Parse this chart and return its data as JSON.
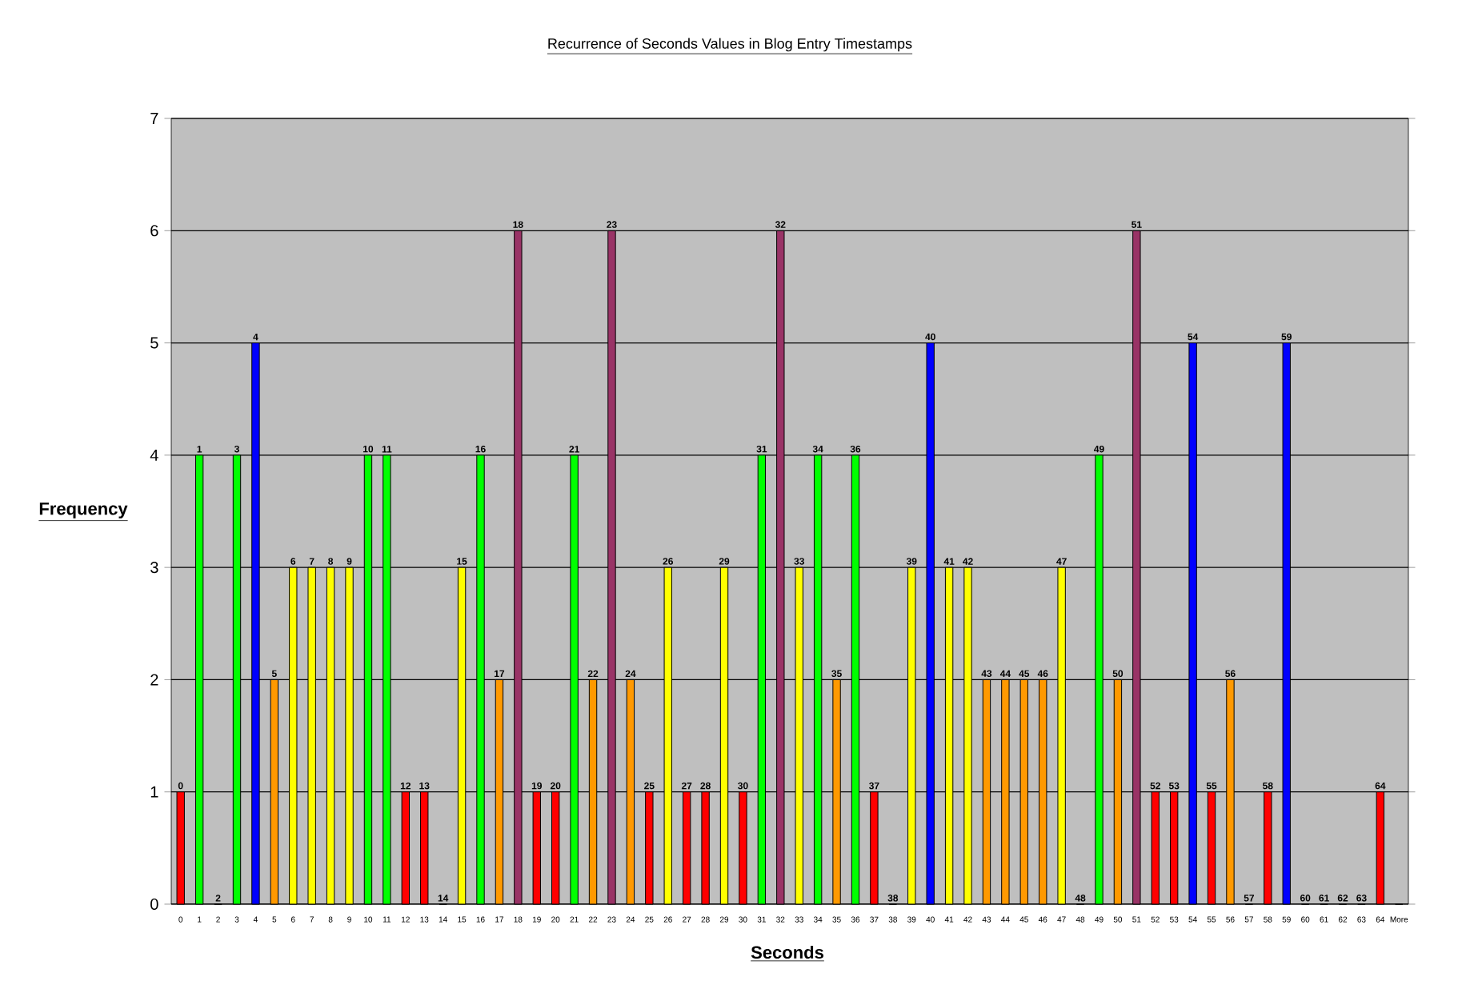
{
  "chart_data": {
    "type": "bar",
    "title": "Recurrence of Seconds Values in Blog Entry Timestamps",
    "xlabel": "Seconds",
    "ylabel": "Frequency",
    "categories": [
      "0",
      "1",
      "2",
      "3",
      "4",
      "5",
      "6",
      "7",
      "8",
      "9",
      "10",
      "11",
      "12",
      "13",
      "14",
      "15",
      "16",
      "17",
      "18",
      "19",
      "20",
      "21",
      "22",
      "23",
      "24",
      "25",
      "26",
      "27",
      "28",
      "29",
      "30",
      "31",
      "32",
      "33",
      "34",
      "35",
      "36",
      "37",
      "38",
      "39",
      "40",
      "41",
      "42",
      "43",
      "44",
      "45",
      "46",
      "47",
      "48",
      "49",
      "50",
      "51",
      "52",
      "53",
      "54",
      "55",
      "56",
      "57",
      "58",
      "59",
      "60",
      "61",
      "62",
      "63",
      "64",
      "More"
    ],
    "values": [
      1,
      4,
      0,
      4,
      5,
      2,
      3,
      3,
      3,
      3,
      4,
      4,
      1,
      1,
      0,
      3,
      4,
      2,
      6,
      1,
      1,
      4,
      2,
      6,
      2,
      1,
      3,
      1,
      1,
      3,
      1,
      4,
      6,
      3,
      4,
      2,
      4,
      1,
      0,
      3,
      5,
      3,
      3,
      2,
      2,
      2,
      2,
      3,
      0,
      4,
      2,
      6,
      1,
      1,
      5,
      1,
      2,
      0,
      1,
      5,
      0,
      0,
      0,
      0,
      1,
      0
    ],
    "annotations": [
      {
        "text": "0",
        "x": "0",
        "y": 1
      },
      {
        "text": "1",
        "x": "1",
        "y": 4
      },
      {
        "text": "2",
        "x": "2",
        "y": 0
      },
      {
        "text": "3",
        "x": "3",
        "y": 4
      },
      {
        "text": "4",
        "x": "4",
        "y": 5
      },
      {
        "text": "5",
        "x": "5",
        "y": 2
      },
      {
        "text": "6",
        "x": "6",
        "y": 3
      },
      {
        "text": "7",
        "x": "7",
        "y": 3
      },
      {
        "text": "8",
        "x": "8",
        "y": 3
      },
      {
        "text": "9",
        "x": "9",
        "y": 3
      },
      {
        "text": "10",
        "x": "10",
        "y": 4
      },
      {
        "text": "11",
        "x": "11",
        "y": 4
      },
      {
        "text": "12",
        "x": "12",
        "y": 1
      },
      {
        "text": "13",
        "x": "13",
        "y": 1
      },
      {
        "text": "14",
        "x": "14",
        "y": 0
      },
      {
        "text": "15",
        "x": "15",
        "y": 3
      },
      {
        "text": "16",
        "x": "16",
        "y": 4
      },
      {
        "text": "17",
        "x": "17",
        "y": 2
      },
      {
        "text": "18",
        "x": "18",
        "y": 6
      },
      {
        "text": "19",
        "x": "19",
        "y": 1
      },
      {
        "text": "20",
        "x": "20",
        "y": 1
      },
      {
        "text": "21",
        "x": "21",
        "y": 4
      },
      {
        "text": "22",
        "x": "22",
        "y": 2
      },
      {
        "text": "23",
        "x": "23",
        "y": 6
      },
      {
        "text": "24",
        "x": "24",
        "y": 2
      },
      {
        "text": "25",
        "x": "25",
        "y": 1
      },
      {
        "text": "26",
        "x": "26",
        "y": 3
      },
      {
        "text": "27",
        "x": "27",
        "y": 1
      },
      {
        "text": "28",
        "x": "28",
        "y": 1
      },
      {
        "text": "29",
        "x": "29",
        "y": 3
      },
      {
        "text": "30",
        "x": "30",
        "y": 1
      },
      {
        "text": "31",
        "x": "31",
        "y": 4
      },
      {
        "text": "32",
        "x": "32",
        "y": 6
      },
      {
        "text": "33",
        "x": "33",
        "y": 3
      },
      {
        "text": "34",
        "x": "34",
        "y": 4
      },
      {
        "text": "35",
        "x": "35",
        "y": 2
      },
      {
        "text": "36",
        "x": "36",
        "y": 4
      },
      {
        "text": "37",
        "x": "37",
        "y": 1
      },
      {
        "text": "38",
        "x": "38",
        "y": 0
      },
      {
        "text": "39",
        "x": "39",
        "y": 3
      },
      {
        "text": "40",
        "x": "40",
        "y": 5
      },
      {
        "text": "41",
        "x": "41",
        "y": 3
      },
      {
        "text": "42",
        "x": "42",
        "y": 3
      },
      {
        "text": "43",
        "x": "43",
        "y": 2
      },
      {
        "text": "44",
        "x": "44",
        "y": 2
      },
      {
        "text": "45",
        "x": "45",
        "y": 2
      },
      {
        "text": "46",
        "x": "46",
        "y": 2
      },
      {
        "text": "47",
        "x": "47",
        "y": 3
      },
      {
        "text": "48",
        "x": "48",
        "y": 0
      },
      {
        "text": "49",
        "x": "49",
        "y": 4
      },
      {
        "text": "50",
        "x": "50",
        "y": 2
      },
      {
        "text": "51",
        "x": "51",
        "y": 6
      },
      {
        "text": "52",
        "x": "52",
        "y": 1
      },
      {
        "text": "53",
        "x": "53",
        "y": 1
      },
      {
        "text": "54",
        "x": "54",
        "y": 5
      },
      {
        "text": "55",
        "x": "55",
        "y": 1
      },
      {
        "text": "56",
        "x": "56",
        "y": 2
      },
      {
        "text": "57",
        "x": "57",
        "y": 0
      },
      {
        "text": "58",
        "x": "58",
        "y": 1
      },
      {
        "text": "59",
        "x": "59",
        "y": 5
      },
      {
        "text": "60",
        "x": "60",
        "y": 0
      },
      {
        "text": "61",
        "x": "61",
        "y": 0
      },
      {
        "text": "62",
        "x": "62",
        "y": 0
      },
      {
        "text": "63",
        "x": "63",
        "y": 0
      },
      {
        "text": "64",
        "x": "64",
        "y": 1
      }
    ],
    "colors": [
      "#ff0000",
      "#00ff00",
      "#ff0000",
      "#00ff00",
      "#0000ff",
      "#ff9900",
      "#ffff00",
      "#ffff00",
      "#ffff00",
      "#ffff00",
      "#00ff00",
      "#00ff00",
      "#ff0000",
      "#ff0000",
      "#ff0000",
      "#ffff00",
      "#00ff00",
      "#ff9900",
      "#993366",
      "#ff0000",
      "#ff0000",
      "#00ff00",
      "#ff9900",
      "#993366",
      "#ff9900",
      "#ff0000",
      "#ffff00",
      "#ff0000",
      "#ff0000",
      "#ffff00",
      "#ff0000",
      "#00ff00",
      "#993366",
      "#ffff00",
      "#00ff00",
      "#ff9900",
      "#00ff00",
      "#ff0000",
      "#ff0000",
      "#ffff00",
      "#0000ff",
      "#ffff00",
      "#ffff00",
      "#ff9900",
      "#ff9900",
      "#ff9900",
      "#ff9900",
      "#ffff00",
      "#ff0000",
      "#00ff00",
      "#ff9900",
      "#993366",
      "#ff0000",
      "#ff0000",
      "#0000ff",
      "#ff0000",
      "#ff9900",
      "#ff0000",
      "#ff0000",
      "#0000ff",
      "#ff0000",
      "#ff0000",
      "#ff0000",
      "#ff0000",
      "#ff0000",
      "#ff0000"
    ],
    "ylim": [
      0,
      7
    ],
    "yticks": [
      0,
      1,
      2,
      3,
      4,
      5,
      6,
      7
    ],
    "grid": "y"
  }
}
